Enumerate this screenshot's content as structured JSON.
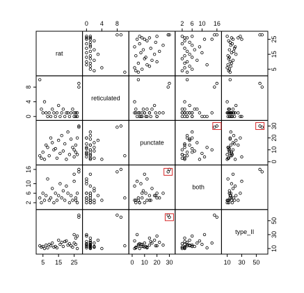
{
  "chart_data": {
    "type": "scatter",
    "title": "",
    "variables": [
      {
        "name": "rat",
        "ticks": [
          5,
          15,
          25
        ],
        "ticks_side": "bottom",
        "ticks_label_side": "right_only_above",
        "range": [
          2,
          29
        ]
      },
      {
        "name": "reticulated",
        "ticks": [
          0,
          4,
          8
        ],
        "range": [
          -0.5,
          10.5
        ]
      },
      {
        "name": "punctate",
        "ticks": [
          0,
          10,
          20,
          30
        ],
        "range": [
          -1,
          33
        ]
      },
      {
        "name": "both",
        "ticks": [
          2,
          6,
          10,
          16
        ],
        "range": [
          0,
          17
        ]
      },
      {
        "name": "type_II",
        "ticks": [
          10,
          30,
          50
        ],
        "range": [
          5,
          63
        ]
      }
    ],
    "axis_layout": {
      "top": [
        1,
        3
      ],
      "bottom": [
        0,
        2,
        4
      ],
      "right": [
        0,
        2,
        4
      ],
      "left": [
        1,
        3
      ]
    },
    "observations": [
      {
        "rat": 3,
        "reticulated": 10,
        "punctate": 5,
        "both": 4,
        "type_II": 14
      },
      {
        "rat": 4,
        "reticulated": 2,
        "punctate": 3,
        "both": 2,
        "type_II": 12
      },
      {
        "rat": 5,
        "reticulated": 1,
        "punctate": 8,
        "both": 6,
        "type_II": 13
      },
      {
        "rat": 6,
        "reticulated": 4,
        "punctate": 2,
        "both": 3,
        "type_II": 10
      },
      {
        "rat": 7,
        "reticulated": 1,
        "punctate": 14,
        "both": 5,
        "type_II": 15
      },
      {
        "rat": 8,
        "reticulated": 0,
        "punctate": 12,
        "both": 12,
        "type_II": 11
      },
      {
        "rat": 9,
        "reticulated": 1,
        "punctate": 5,
        "both": 3,
        "type_II": 16
      },
      {
        "rat": 10,
        "reticulated": 0,
        "punctate": 20,
        "both": 4,
        "type_II": 14
      },
      {
        "rat": 11,
        "reticulated": 2,
        "punctate": 16,
        "both": 8,
        "type_II": 18
      },
      {
        "rat": 12,
        "reticulated": 1,
        "punctate": 10,
        "both": 2,
        "type_II": 12
      },
      {
        "rat": 13,
        "reticulated": 0,
        "punctate": 11,
        "both": 6,
        "type_II": 13
      },
      {
        "rat": 14,
        "reticulated": 1,
        "punctate": 3,
        "both": 3,
        "type_II": 11
      },
      {
        "rat": 15,
        "reticulated": 3,
        "punctate": 18,
        "both": 5,
        "type_II": 22
      },
      {
        "rat": 16,
        "reticulated": 0,
        "punctate": 7,
        "both": 10,
        "type_II": 16
      },
      {
        "rat": 17,
        "reticulated": 1,
        "punctate": 22,
        "both": 4,
        "type_II": 19
      },
      {
        "rat": 18,
        "reticulated": 2,
        "punctate": 9,
        "both": 7,
        "type_II": 13
      },
      {
        "rat": 19,
        "reticulated": 0,
        "punctate": 15,
        "both": 3,
        "type_II": 20
      },
      {
        "rat": 20,
        "reticulated": 1,
        "punctate": 2,
        "both": 9,
        "type_II": 21
      },
      {
        "rat": 21,
        "reticulated": 1,
        "punctate": 25,
        "both": 6,
        "type_II": 15
      },
      {
        "rat": 22,
        "reticulated": 0,
        "punctate": 6,
        "both": 2,
        "type_II": 17
      },
      {
        "rat": 23,
        "reticulated": 1,
        "punctate": 19,
        "both": 5,
        "type_II": 14
      },
      {
        "rat": 24,
        "reticulated": 2,
        "punctate": 12,
        "both": 3,
        "type_II": 12
      },
      {
        "rat": 25,
        "reticulated": 0,
        "punctate": 4,
        "both": 11,
        "type_II": 30
      },
      {
        "rat": 25,
        "reticulated": 1,
        "punctate": 10,
        "both": 14,
        "type_II": 18
      },
      {
        "rat": 26,
        "reticulated": 0,
        "punctate": 8,
        "both": 4,
        "type_II": 16
      },
      {
        "rat": 26,
        "reticulated": 1,
        "punctate": 14,
        "both": 3,
        "type_II": 25
      },
      {
        "rat": 27,
        "reticulated": 0,
        "punctate": 20,
        "both": 6,
        "type_II": 28
      },
      {
        "rat": 27,
        "reticulated": 1,
        "punctate": 6,
        "both": 2,
        "type_II": 10
      },
      {
        "rat": 28,
        "reticulated": 9,
        "punctate": 30,
        "both": 16,
        "type_II": 55
      },
      {
        "rat": 28,
        "reticulated": 8,
        "punctate": 29,
        "both": 15,
        "type_II": 58
      }
    ]
  }
}
